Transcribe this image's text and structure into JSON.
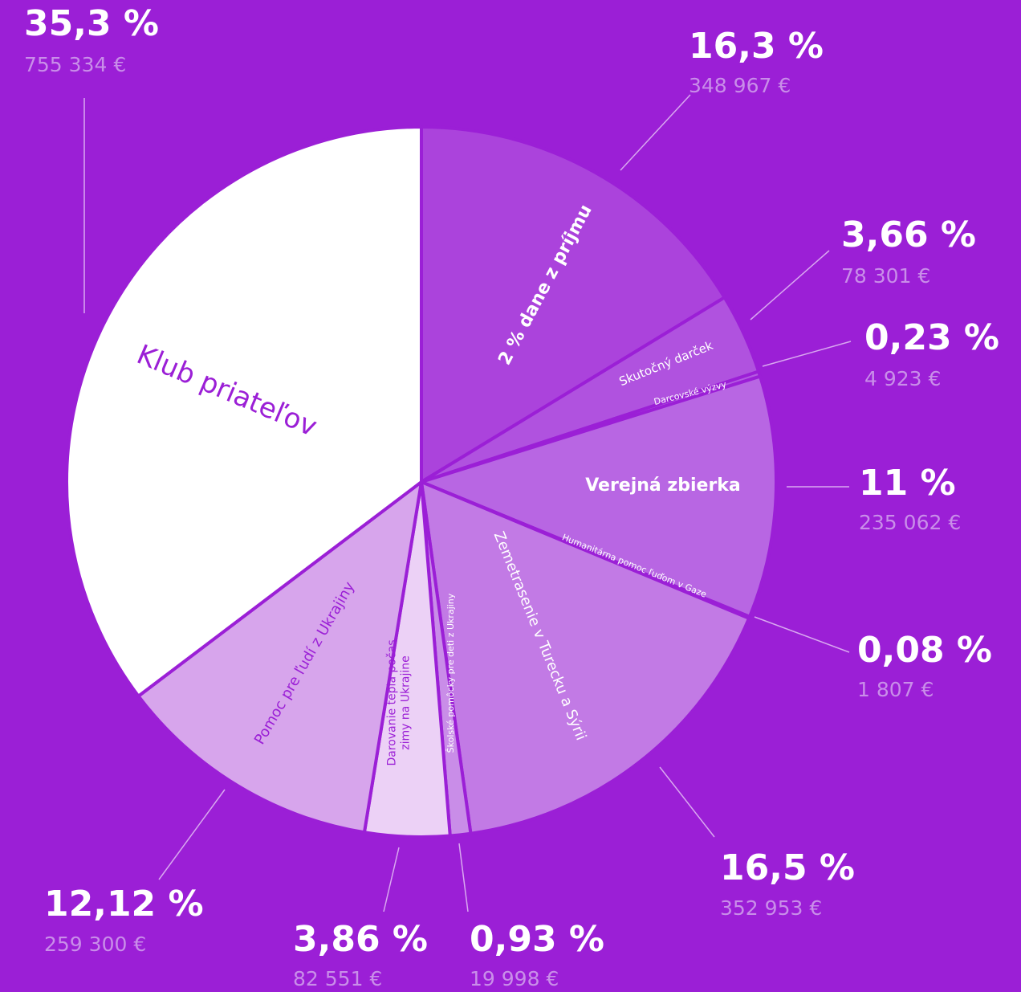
{
  "chart_data": {
    "type": "pie",
    "categories": [
      "2 % dane z príjmu",
      "Skutočný darček",
      "Darcovské výzvy",
      "Verejná zbierka",
      "Humanitárna pomoc ľuďom v Gaze",
      "Zemetrasenie v Turecku a Sýrii",
      "Školské pomôcky pre deti z Ukrajiny",
      "Darovanie tepla počas zimy na Ukrajine",
      "Pomoc pre ľudí z Ukrajiny",
      "Klub priateľov"
    ],
    "values": [
      16.3,
      3.66,
      0.23,
      11,
      0.08,
      16.5,
      0.93,
      3.86,
      12.12,
      35.3
    ],
    "value_labels": [
      "16,3 %",
      "3,66 %",
      "0,23 %",
      "11 %",
      "0,08 %",
      "16,5 %",
      "0,93 %",
      "3,86 %",
      "12,12 %",
      "35,3 %"
    ],
    "amount_labels": [
      "348 967 €",
      "78 301 €",
      "4 923 €",
      "235 062 €",
      "1 807 €",
      "352 953 €",
      "19 998 €",
      "82 551 €",
      "259 300 €",
      "755 334 €"
    ],
    "colors": [
      "#ab43dc",
      "#b052df",
      "#b45ae1",
      "#b866e3",
      "#bb6de4",
      "#c27ae5",
      "#c98de8",
      "#ecd1f6",
      "#d7a5ec",
      "#ffffff"
    ]
  }
}
